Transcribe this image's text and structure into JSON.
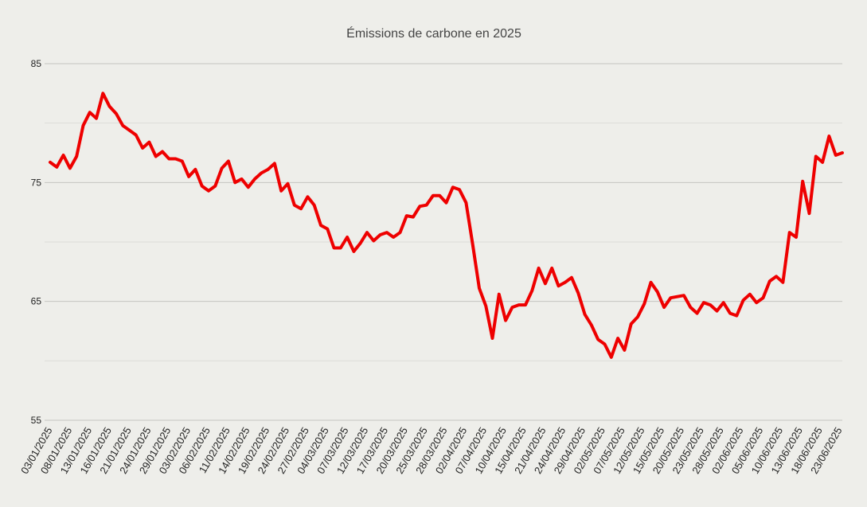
{
  "chart_data": {
    "type": "line",
    "title": "Émissions de carbone en 2025",
    "xlabel": "",
    "ylabel": "",
    "ylim": [
      55,
      85
    ],
    "yticks": [
      55,
      65,
      75,
      85
    ],
    "grid": true,
    "legend": "none",
    "colors": {
      "line": "#ee0000",
      "background": "#eeeeea",
      "grid": "#c4c4c0"
    },
    "xticks": [
      "03/01/2025",
      "08/01/2025",
      "13/01/2025",
      "16/01/2025",
      "21/01/2025",
      "24/01/2025",
      "29/01/2025",
      "03/02/2025",
      "06/02/2025",
      "11/02/2025",
      "14/02/2025",
      "19/02/2025",
      "24/02/2025",
      "27/02/2025",
      "04/03/2025",
      "07/03/2025",
      "12/03/2025",
      "17/03/2025",
      "20/03/2025",
      "25/03/2025",
      "28/03/2025",
      "02/04/2025",
      "07/04/2025",
      "10/04/2025",
      "15/04/2025",
      "21/04/2025",
      "24/04/2025",
      "29/04/2025",
      "02/05/2025",
      "07/05/2025",
      "12/05/2025",
      "15/05/2025",
      "20/05/2025",
      "23/05/2025",
      "28/05/2025",
      "02/06/2025",
      "05/06/2025",
      "10/06/2025",
      "13/06/2025",
      "18/06/2025",
      "23/06/2025"
    ],
    "series": [
      {
        "name": "",
        "values": [
          76.7,
          76.3,
          77.3,
          76.2,
          77.2,
          79.8,
          80.9,
          80.4,
          82.5,
          81.4,
          80.8,
          79.8,
          79.4,
          79.0,
          77.9,
          78.4,
          77.2,
          77.6,
          77.0,
          77.0,
          76.8,
          75.5,
          76.1,
          74.7,
          74.3,
          74.7,
          76.2,
          76.8,
          75.0,
          75.3,
          74.6,
          75.3,
          75.8,
          76.1,
          76.6,
          74.3,
          74.9,
          73.1,
          72.8,
          73.8,
          73.1,
          71.4,
          71.1,
          69.5,
          69.5,
          70.4,
          69.2,
          69.9,
          70.8,
          70.1,
          70.6,
          70.8,
          70.4,
          70.8,
          72.2,
          72.1,
          73.0,
          73.1,
          73.9,
          73.9,
          73.3,
          74.6,
          74.4,
          73.3,
          69.8,
          66.1,
          64.6,
          61.9,
          65.6,
          63.4,
          64.5,
          64.7,
          64.7,
          65.9,
          67.8,
          66.5,
          67.8,
          66.3,
          66.6,
          67.0,
          65.7,
          63.9,
          63.0,
          61.8,
          61.4,
          60.3,
          61.9,
          60.9,
          63.1,
          63.7,
          64.8,
          66.6,
          65.8,
          64.5,
          65.3,
          65.4,
          65.5,
          64.5,
          64.0,
          64.9,
          64.7,
          64.2,
          64.9,
          64.0,
          63.8,
          65.1,
          65.6,
          64.9,
          65.3,
          66.7,
          67.1,
          66.6,
          70.8,
          70.4,
          75.1,
          72.4,
          77.2,
          76.7,
          78.9,
          77.3,
          77.5
        ]
      }
    ]
  }
}
